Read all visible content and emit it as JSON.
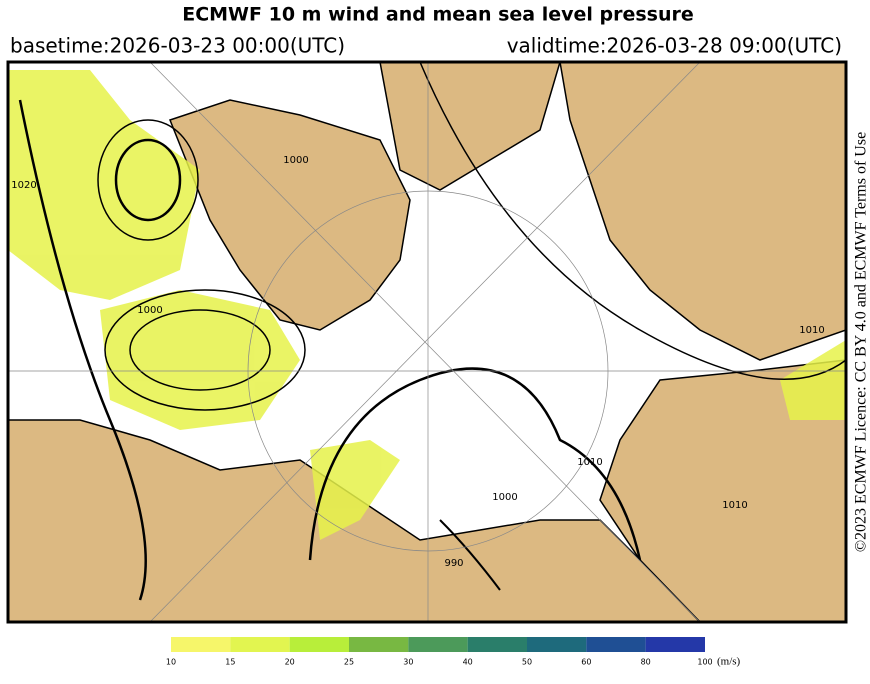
{
  "header": {
    "title": "ECMWF 10 m wind and mean sea level pressure",
    "basetime": "basetime:2026-03-23 00:00(UTC)",
    "validtime": "validtime:2026-03-28 09:00(UTC)"
  },
  "credit": "©2023 ECMWF Licence: CC BY 4.0 and ECMWF Terms of Use",
  "contour_labels": [
    "1020",
    "1000",
    "1000",
    "1010",
    "1000",
    "990",
    "1010",
    "1010"
  ],
  "colorbar": {
    "ticks": [
      10,
      15,
      20,
      25,
      30,
      40,
      50,
      60,
      80,
      100
    ],
    "colors": [
      "#f6f66a",
      "#e2f550",
      "#b8ee3a",
      "#78b842",
      "#4c9a5a",
      "#2a7e6a",
      "#1e6a7c",
      "#1f4f94",
      "#2438a8"
    ],
    "unit": "(m/s)"
  }
}
